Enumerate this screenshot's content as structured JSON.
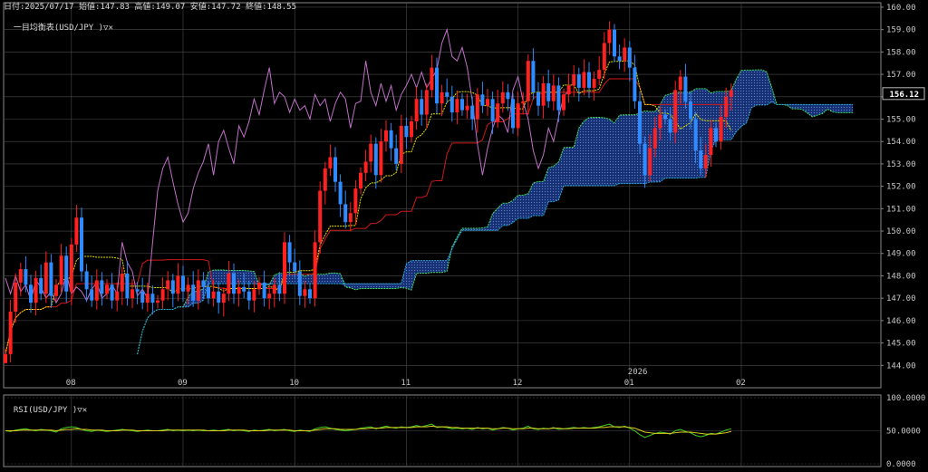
{
  "header": {
    "ohlc": "日付:2025/07/17 始値:147.83 高値:149.07 安値:147.72 終値:148.55",
    "main_indicator": "一目均衡表(USD/JPY )",
    "sub_indicator": "RSI(USD/JPY )",
    "controls": "▽✕"
  },
  "colors": {
    "background": "#000000",
    "grid": "#4a4a4a",
    "axis_text": "#c8c8c8",
    "candle_up": "#ff2020",
    "candle_down": "#2f8bff",
    "tenkan": "#e6e600",
    "kijun": "#d01818",
    "chikou": "#c070c8",
    "span_a": "#40e060",
    "span_b": "#2aa8e0",
    "cloud_fill": "#1a3a8a",
    "rsi": "#40d020",
    "rsi_signal": "#e0d020"
  },
  "chart_data": [
    {
      "type": "candlestick",
      "title": "一目均衡表(USD/JPY )",
      "x_ticks": [
        {
          "label": "08",
          "bar": 13
        },
        {
          "label": "09",
          "bar": 35
        },
        {
          "label": "10",
          "bar": 57
        },
        {
          "label": "11",
          "bar": 79
        },
        {
          "label": "12",
          "bar": 101
        },
        {
          "label": "01",
          "bar": 123
        },
        {
          "label": "02",
          "bar": 145
        }
      ],
      "year_marker": {
        "label": "2026",
        "bar": 123
      },
      "y_ticks": [
        "144.00",
        "145.00",
        "146.00",
        "147.00",
        "148.00",
        "149.00",
        "150.00",
        "151.00",
        "152.00",
        "153.00",
        "154.00",
        "155.00",
        "156.00",
        "157.00",
        "158.00",
        "159.00",
        "160.00"
      ],
      "ylim": [
        143.0,
        160.2
      ],
      "current_price": "156.12",
      "grid": true,
      "closes": [
        144.5,
        146.4,
        147.7,
        148.3,
        147.6,
        146.8,
        147.9,
        147.2,
        148.6,
        147.1,
        147.6,
        148.9,
        147.3,
        149.4,
        150.6,
        148.2,
        147.4,
        146.9,
        147.8,
        147.2,
        147.6,
        146.9,
        147.3,
        148.1,
        147.0,
        147.4,
        147.3,
        146.8,
        147.2,
        146.8,
        146.9,
        147.4,
        147.8,
        147.2,
        148.0,
        147.3,
        147.6,
        146.9,
        147.8,
        147.5,
        147.0,
        147.3,
        146.8,
        147.2,
        148.1,
        147.2,
        147.5,
        147.3,
        146.9,
        147.4,
        147.7,
        147.0,
        147.2,
        147.6,
        147.2,
        149.5,
        148.6,
        148.2,
        147.1,
        147.4,
        147.0,
        149.5,
        151.8,
        152.8,
        153.3,
        152.2,
        151.2,
        150.4,
        150.8,
        151.9,
        152.6,
        153.1,
        153.9,
        152.5,
        154.0,
        154.5,
        153.7,
        153.0,
        154.7,
        154.2,
        154.9,
        155.9,
        155.2,
        156.3,
        157.3,
        155.7,
        156.2,
        156.0,
        155.3,
        155.9,
        155.4,
        155.6,
        155.0,
        156.1,
        155.6,
        155.9,
        154.9,
        155.7,
        156.2,
        155.9,
        154.6,
        155.7,
        155.8,
        157.6,
        156.2,
        155.6,
        156.6,
        155.8,
        156.5,
        155.4,
        156.1,
        156.5,
        157.0,
        156.4,
        157.1,
        156.4,
        156.8,
        157.2,
        158.4,
        159.0,
        157.8,
        157.6,
        158.2,
        157.3,
        155.8,
        153.9,
        152.5,
        153.7,
        154.6,
        155.2,
        155.0,
        154.4,
        156.3,
        156.9,
        155.8,
        155.0,
        153.6,
        152.8,
        153.4,
        154.6,
        154.0,
        155.1,
        156.0,
        156.3
      ],
      "lagging_span": [
        147.9,
        147.2,
        148.0,
        147.3,
        147.6,
        146.9,
        147.8,
        147.5,
        147.0,
        147.3,
        146.8,
        147.2,
        148.1,
        147.2,
        147.5,
        147.3,
        146.9,
        147.4,
        147.7,
        147.0,
        147.2,
        147.6,
        147.2,
        149.5,
        148.6,
        148.2,
        147.1,
        147.4,
        147.0,
        149.5,
        151.8,
        152.8,
        153.3,
        152.2,
        151.2,
        150.4,
        150.8,
        151.9,
        152.6,
        153.1,
        153.9,
        152.5,
        154.0,
        154.5,
        153.7,
        153.0,
        154.7,
        154.2,
        154.9,
        155.9,
        155.2,
        156.3,
        157.3,
        155.7,
        156.2,
        156.0,
        155.3,
        155.9,
        155.4,
        155.6,
        155.0,
        156.1,
        155.6,
        155.9,
        154.9,
        155.7,
        156.2,
        155.9,
        154.6,
        155.7,
        155.8,
        157.6,
        156.2,
        155.6,
        156.6,
        155.8,
        156.5,
        155.4,
        156.1,
        156.5,
        157.0,
        156.4,
        157.1,
        156.4,
        156.8,
        157.2,
        158.4,
        159.0,
        157.8,
        157.6,
        158.2,
        157.3,
        155.8,
        153.9,
        152.5,
        153.7,
        154.6,
        155.2,
        155.0,
        154.4,
        156.3,
        156.9,
        155.8,
        155.0,
        153.6,
        152.8,
        153.4,
        154.6,
        154.0,
        155.1,
        156.0,
        156.3
      ]
    },
    {
      "type": "line",
      "title": "RSI(USD/JPY )",
      "ylim": [
        0,
        100
      ],
      "y_ticks": [
        "0.0000",
        "50.0000",
        "100.0000"
      ],
      "series": [
        {
          "values": [
            50,
            49,
            51,
            52,
            53,
            51,
            50,
            52,
            51,
            50,
            48,
            53,
            55,
            56,
            55,
            52,
            50,
            49,
            51,
            50,
            49,
            50,
            51,
            52,
            51,
            50,
            49,
            50,
            51,
            50,
            50,
            51,
            52,
            50,
            51,
            50,
            51,
            50,
            51,
            50,
            50,
            51,
            50,
            51,
            52,
            50,
            51,
            50,
            49,
            51,
            50,
            51,
            52,
            50,
            51,
            52,
            50,
            49,
            51,
            50,
            49,
            53,
            55,
            56,
            54,
            52,
            51,
            50,
            51,
            52,
            54,
            55,
            56,
            53,
            55,
            57,
            55,
            54,
            56,
            55,
            56,
            58,
            56,
            58,
            60,
            55,
            56,
            55,
            53,
            54,
            53,
            54,
            52,
            55,
            53,
            54,
            51,
            53,
            55,
            54,
            51,
            53,
            54,
            57,
            53,
            52,
            54,
            53,
            55,
            52,
            53,
            54,
            55,
            54,
            55,
            54,
            55,
            56,
            58,
            60,
            56,
            55,
            57,
            54,
            50,
            44,
            40,
            43,
            46,
            48,
            47,
            45,
            50,
            52,
            49,
            47,
            43,
            41,
            43,
            46,
            45,
            48,
            51,
            53
          ]
        },
        {
          "values": [
            50,
            50,
            50,
            51,
            51,
            51,
            51,
            51,
            51,
            51,
            50,
            51,
            52,
            52,
            53,
            52,
            52,
            51,
            51,
            51,
            50,
            50,
            50,
            51,
            51,
            51,
            50,
            50,
            50,
            50,
            50,
            50,
            51,
            51,
            51,
            51,
            51,
            51,
            51,
            51,
            50,
            50,
            50,
            50,
            51,
            51,
            51,
            51,
            50,
            50,
            50,
            50,
            51,
            51,
            51,
            51,
            51,
            50,
            50,
            50,
            50,
            51,
            52,
            53,
            53,
            53,
            52,
            52,
            52,
            52,
            53,
            53,
            54,
            54,
            54,
            55,
            55,
            55,
            55,
            55,
            55,
            56,
            56,
            56,
            57,
            56,
            56,
            56,
            55,
            55,
            54,
            54,
            54,
            54,
            54,
            54,
            53,
            53,
            54,
            54,
            53,
            53,
            53,
            54,
            54,
            53,
            53,
            53,
            54,
            54,
            53,
            53,
            54,
            54,
            54,
            54,
            54,
            55,
            55,
            56,
            56,
            56,
            56,
            55,
            54,
            51,
            48,
            47,
            46,
            46,
            46,
            46,
            47,
            48,
            48,
            48,
            47,
            46,
            45,
            45,
            45,
            46,
            47,
            49
          ]
        }
      ]
    }
  ]
}
